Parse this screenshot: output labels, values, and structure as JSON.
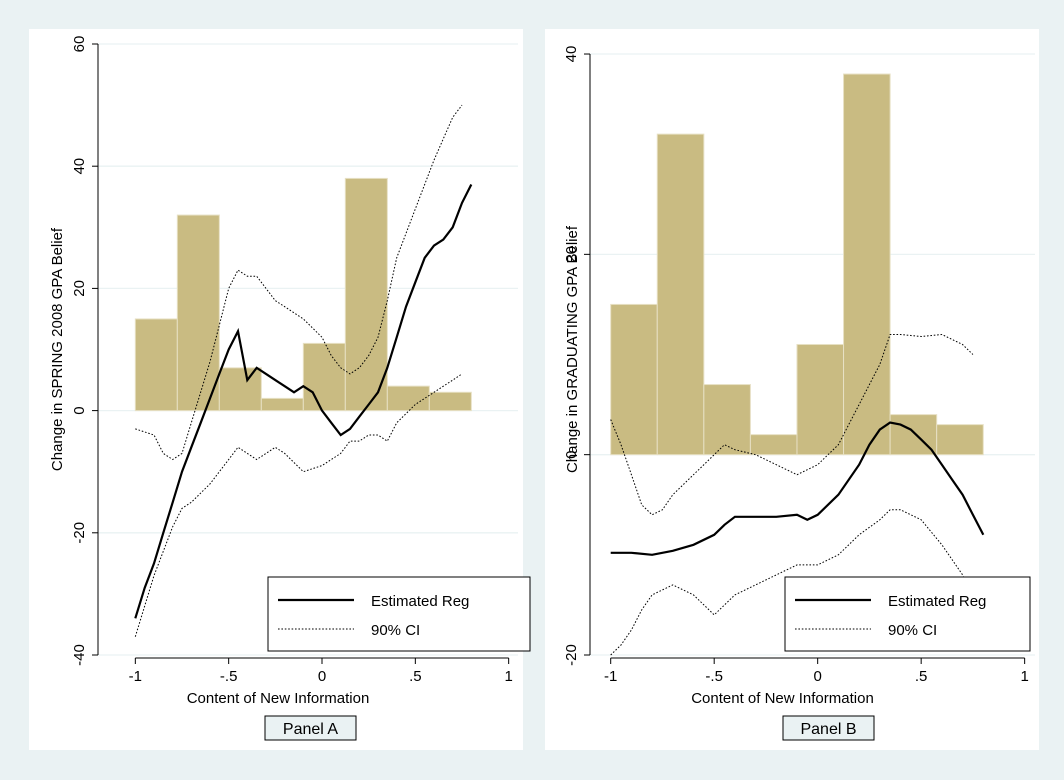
{
  "chart_data": [
    {
      "panel": "Panel A",
      "type": "line",
      "xlabel": "Content of New Information",
      "ylabel": "Change in SPRING 2008 GPA Belief",
      "xlim": [
        -1.2,
        1.05
      ],
      "ylim": [
        -40,
        60
      ],
      "xticks": [
        -1,
        -0.5,
        0,
        0.5,
        1
      ],
      "xtick_labels": [
        "-1",
        "-.5",
        "0",
        ".5",
        "1"
      ],
      "yticks": [
        -40,
        -20,
        0,
        20,
        40,
        60
      ],
      "ytick_labels": [
        "-40",
        "-20",
        "0",
        "20",
        "40",
        "60"
      ],
      "grid": "horizontal",
      "legend_position": "bottom-right",
      "histogram": {
        "bin_edges": [
          -1,
          -0.775,
          -0.55,
          -0.325,
          -0.1,
          0.125,
          0.35,
          0.575,
          0.8
        ],
        "values": [
          15,
          32,
          7,
          2,
          11,
          38,
          4,
          3
        ]
      },
      "series": [
        {
          "name": "Estimated Reg",
          "style": "solid",
          "x": [
            -1.0,
            -0.95,
            -0.9,
            -0.85,
            -0.8,
            -0.75,
            -0.7,
            -0.65,
            -0.6,
            -0.55,
            -0.5,
            -0.45,
            -0.4,
            -0.35,
            -0.3,
            -0.25,
            -0.2,
            -0.15,
            -0.1,
            -0.05,
            0.0,
            0.05,
            0.1,
            0.15,
            0.2,
            0.25,
            0.3,
            0.35,
            0.4,
            0.45,
            0.5,
            0.55,
            0.6,
            0.65,
            0.7,
            0.75,
            0.8
          ],
          "y": [
            -34,
            -29,
            -25,
            -20,
            -15,
            -10,
            -6,
            -2,
            2,
            6,
            10,
            13,
            5,
            7,
            6,
            5,
            4,
            3,
            4,
            3,
            0,
            -2,
            -4,
            -3,
            -1,
            1,
            3,
            7,
            12,
            17,
            21,
            25,
            27,
            28,
            30,
            34,
            37
          ]
        },
        {
          "name": "90% CI",
          "style": "dotted",
          "x": [
            -1.0,
            -0.9,
            -0.85,
            -0.8,
            -0.75,
            -0.7,
            -0.6,
            -0.5,
            -0.45,
            -0.4,
            -0.35,
            -0.3,
            -0.25,
            -0.2,
            -0.1,
            0.0,
            0.05,
            0.1,
            0.15,
            0.2,
            0.25,
            0.3,
            0.35,
            0.4,
            0.5,
            0.6,
            0.7,
            0.75
          ],
          "y": [
            -3,
            -4,
            -7,
            -8,
            -7,
            -2,
            8,
            20,
            23,
            22,
            22,
            20,
            18,
            17,
            15,
            12,
            9,
            7,
            6,
            7,
            9,
            12,
            18,
            25,
            33,
            41,
            48,
            50
          ]
        },
        {
          "name": "",
          "style": "dotted",
          "x": [
            -1.0,
            -0.9,
            -0.8,
            -0.75,
            -0.7,
            -0.6,
            -0.5,
            -0.45,
            -0.4,
            -0.35,
            -0.3,
            -0.25,
            -0.2,
            -0.1,
            0.0,
            0.1,
            0.15,
            0.2,
            0.25,
            0.3,
            0.35,
            0.4,
            0.5,
            0.6,
            0.7,
            0.75
          ],
          "y": [
            -37,
            -27,
            -19,
            -16,
            -15,
            -12,
            -8,
            -6,
            -7,
            -8,
            -7,
            -6,
            -7,
            -10,
            -9,
            -7,
            -5,
            -5,
            -4,
            -4,
            -5,
            -2,
            1,
            3,
            5,
            6
          ]
        }
      ],
      "legend": [
        "Estimated Reg",
        "90% CI"
      ]
    },
    {
      "panel": "Panel B",
      "type": "line",
      "xlabel": "Content of New Information",
      "ylabel": "Change in GRADUATING GPA Belief",
      "xlim": [
        -1.1,
        1.05
      ],
      "ylim": [
        -20,
        41
      ],
      "xticks": [
        -1,
        -0.5,
        0,
        0.5,
        1
      ],
      "xtick_labels": [
        "-1",
        "-.5",
        "0",
        ".5",
        "1"
      ],
      "yticks": [
        -20,
        0,
        20,
        40
      ],
      "ytick_labels": [
        "-20",
        "0",
        "20",
        "40"
      ],
      "grid": "horizontal",
      "legend_position": "bottom-right",
      "histogram": {
        "bin_edges": [
          -1,
          -0.775,
          -0.55,
          -0.325,
          -0.1,
          0.125,
          0.35,
          0.575,
          0.8
        ],
        "values": [
          15,
          32,
          7,
          2,
          11,
          38,
          4,
          3
        ]
      },
      "series": [
        {
          "name": "Estimated Reg",
          "style": "solid",
          "x": [
            -1.0,
            -0.9,
            -0.8,
            -0.7,
            -0.6,
            -0.5,
            -0.45,
            -0.4,
            -0.3,
            -0.2,
            -0.1,
            -0.05,
            0.0,
            0.1,
            0.2,
            0.25,
            0.3,
            0.35,
            0.4,
            0.45,
            0.5,
            0.55,
            0.6,
            0.65,
            0.7,
            0.75,
            0.8
          ],
          "y": [
            -9.8,
            -9.8,
            -10,
            -9.6,
            -9,
            -8,
            -7,
            -6.2,
            -6.2,
            -6.2,
            -6,
            -6.5,
            -6,
            -4,
            -1,
            1,
            2.5,
            3.2,
            3,
            2.5,
            1.5,
            0.5,
            -1,
            -2.5,
            -4,
            -6,
            -8
          ]
        },
        {
          "name": "90% CI",
          "style": "dotted",
          "x": [
            -1.0,
            -0.95,
            -0.9,
            -0.85,
            -0.8,
            -0.75,
            -0.7,
            -0.6,
            -0.5,
            -0.45,
            -0.4,
            -0.3,
            -0.2,
            -0.1,
            0.0,
            0.05,
            0.1,
            0.15,
            0.2,
            0.25,
            0.3,
            0.35,
            0.4,
            0.5,
            0.6,
            0.65,
            0.7,
            0.75
          ],
          "y": [
            3.5,
            1,
            -2,
            -5,
            -6,
            -5.5,
            -4,
            -2,
            0,
            1,
            0.5,
            0,
            -1,
            -2,
            -1,
            0,
            1,
            3,
            5,
            7,
            9,
            12,
            12,
            11.8,
            12,
            11.5,
            11,
            10
          ]
        },
        {
          "name": "",
          "style": "dotted",
          "x": [
            -1.0,
            -0.95,
            -0.9,
            -0.85,
            -0.8,
            -0.7,
            -0.6,
            -0.5,
            -0.45,
            -0.4,
            -0.3,
            -0.2,
            -0.1,
            0.0,
            0.1,
            0.2,
            0.3,
            0.35,
            0.4,
            0.5,
            0.6,
            0.7,
            0.75
          ],
          "y": [
            -20,
            -19,
            -17.5,
            -15.5,
            -14,
            -13,
            -14,
            -16,
            -15,
            -14,
            -13,
            -12,
            -11,
            -11,
            -10,
            -8,
            -6.5,
            -5.5,
            -5.5,
            -6.5,
            -9,
            -12,
            -14
          ]
        }
      ],
      "legend": [
        "Estimated Reg",
        "90% CI"
      ]
    }
  ]
}
